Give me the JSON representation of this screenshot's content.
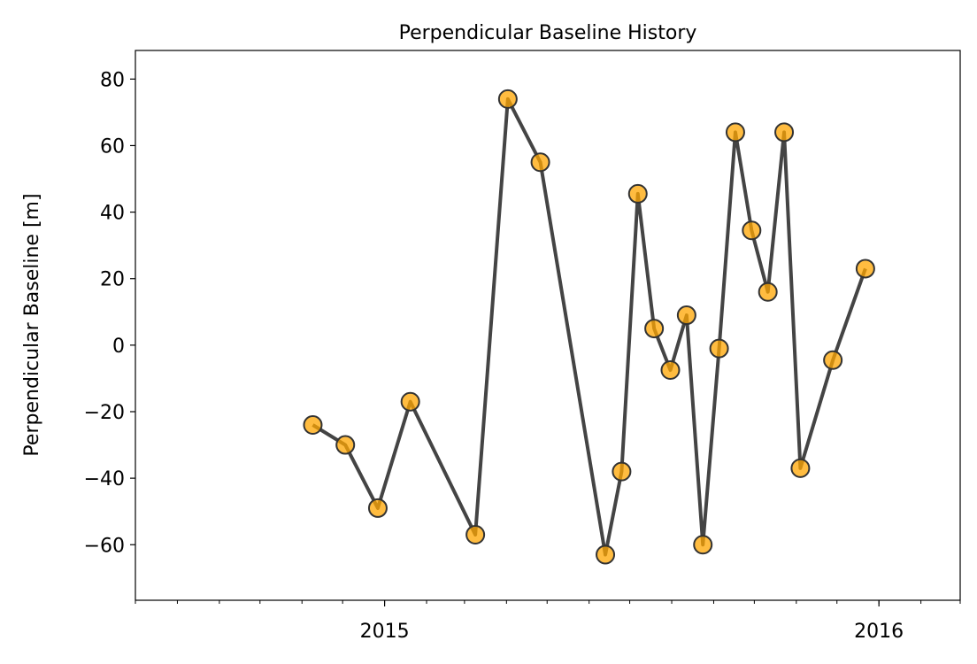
{
  "chart_data": {
    "type": "line",
    "title": "Perpendicular Baseline History",
    "xlabel": "",
    "ylabel": "Perpendicular Baseline [m]",
    "xlim": [
      "2014-07-01",
      "2016-03-01"
    ],
    "ylim": [
      -76.7,
      88.6
    ],
    "yticks": [
      -60,
      -40,
      -20,
      0,
      20,
      40,
      60,
      80
    ],
    "ytick_labels": [
      "−60",
      "−40",
      "−20",
      "0",
      "20",
      "40",
      "60",
      "80"
    ],
    "xticks_major": [
      "2015-01-01",
      "2016-01-01"
    ],
    "xtick_labels": [
      "2015",
      "2016"
    ],
    "grid": false,
    "marker_color": "#ffa500",
    "line_color": "#444444",
    "series": [
      {
        "name": "Perpendicular Baseline",
        "x": [
          "2014-11-09",
          "2014-12-03",
          "2014-12-27",
          "2015-01-20",
          "2015-03-09",
          "2015-04-02",
          "2015-04-26",
          "2015-06-13",
          "2015-06-25",
          "2015-07-07",
          "2015-07-19",
          "2015-07-31",
          "2015-08-12",
          "2015-08-24",
          "2015-09-05",
          "2015-09-17",
          "2015-09-29",
          "2015-10-11",
          "2015-10-23",
          "2015-11-04",
          "2015-11-28",
          "2015-12-22"
        ],
        "y": [
          -24,
          -30,
          -49,
          -17,
          -57,
          74,
          55,
          -63,
          -38,
          45.5,
          5,
          -7.5,
          9,
          -60,
          -1,
          64,
          34.5,
          16,
          64,
          -37,
          -4.5,
          23
        ]
      }
    ]
  }
}
